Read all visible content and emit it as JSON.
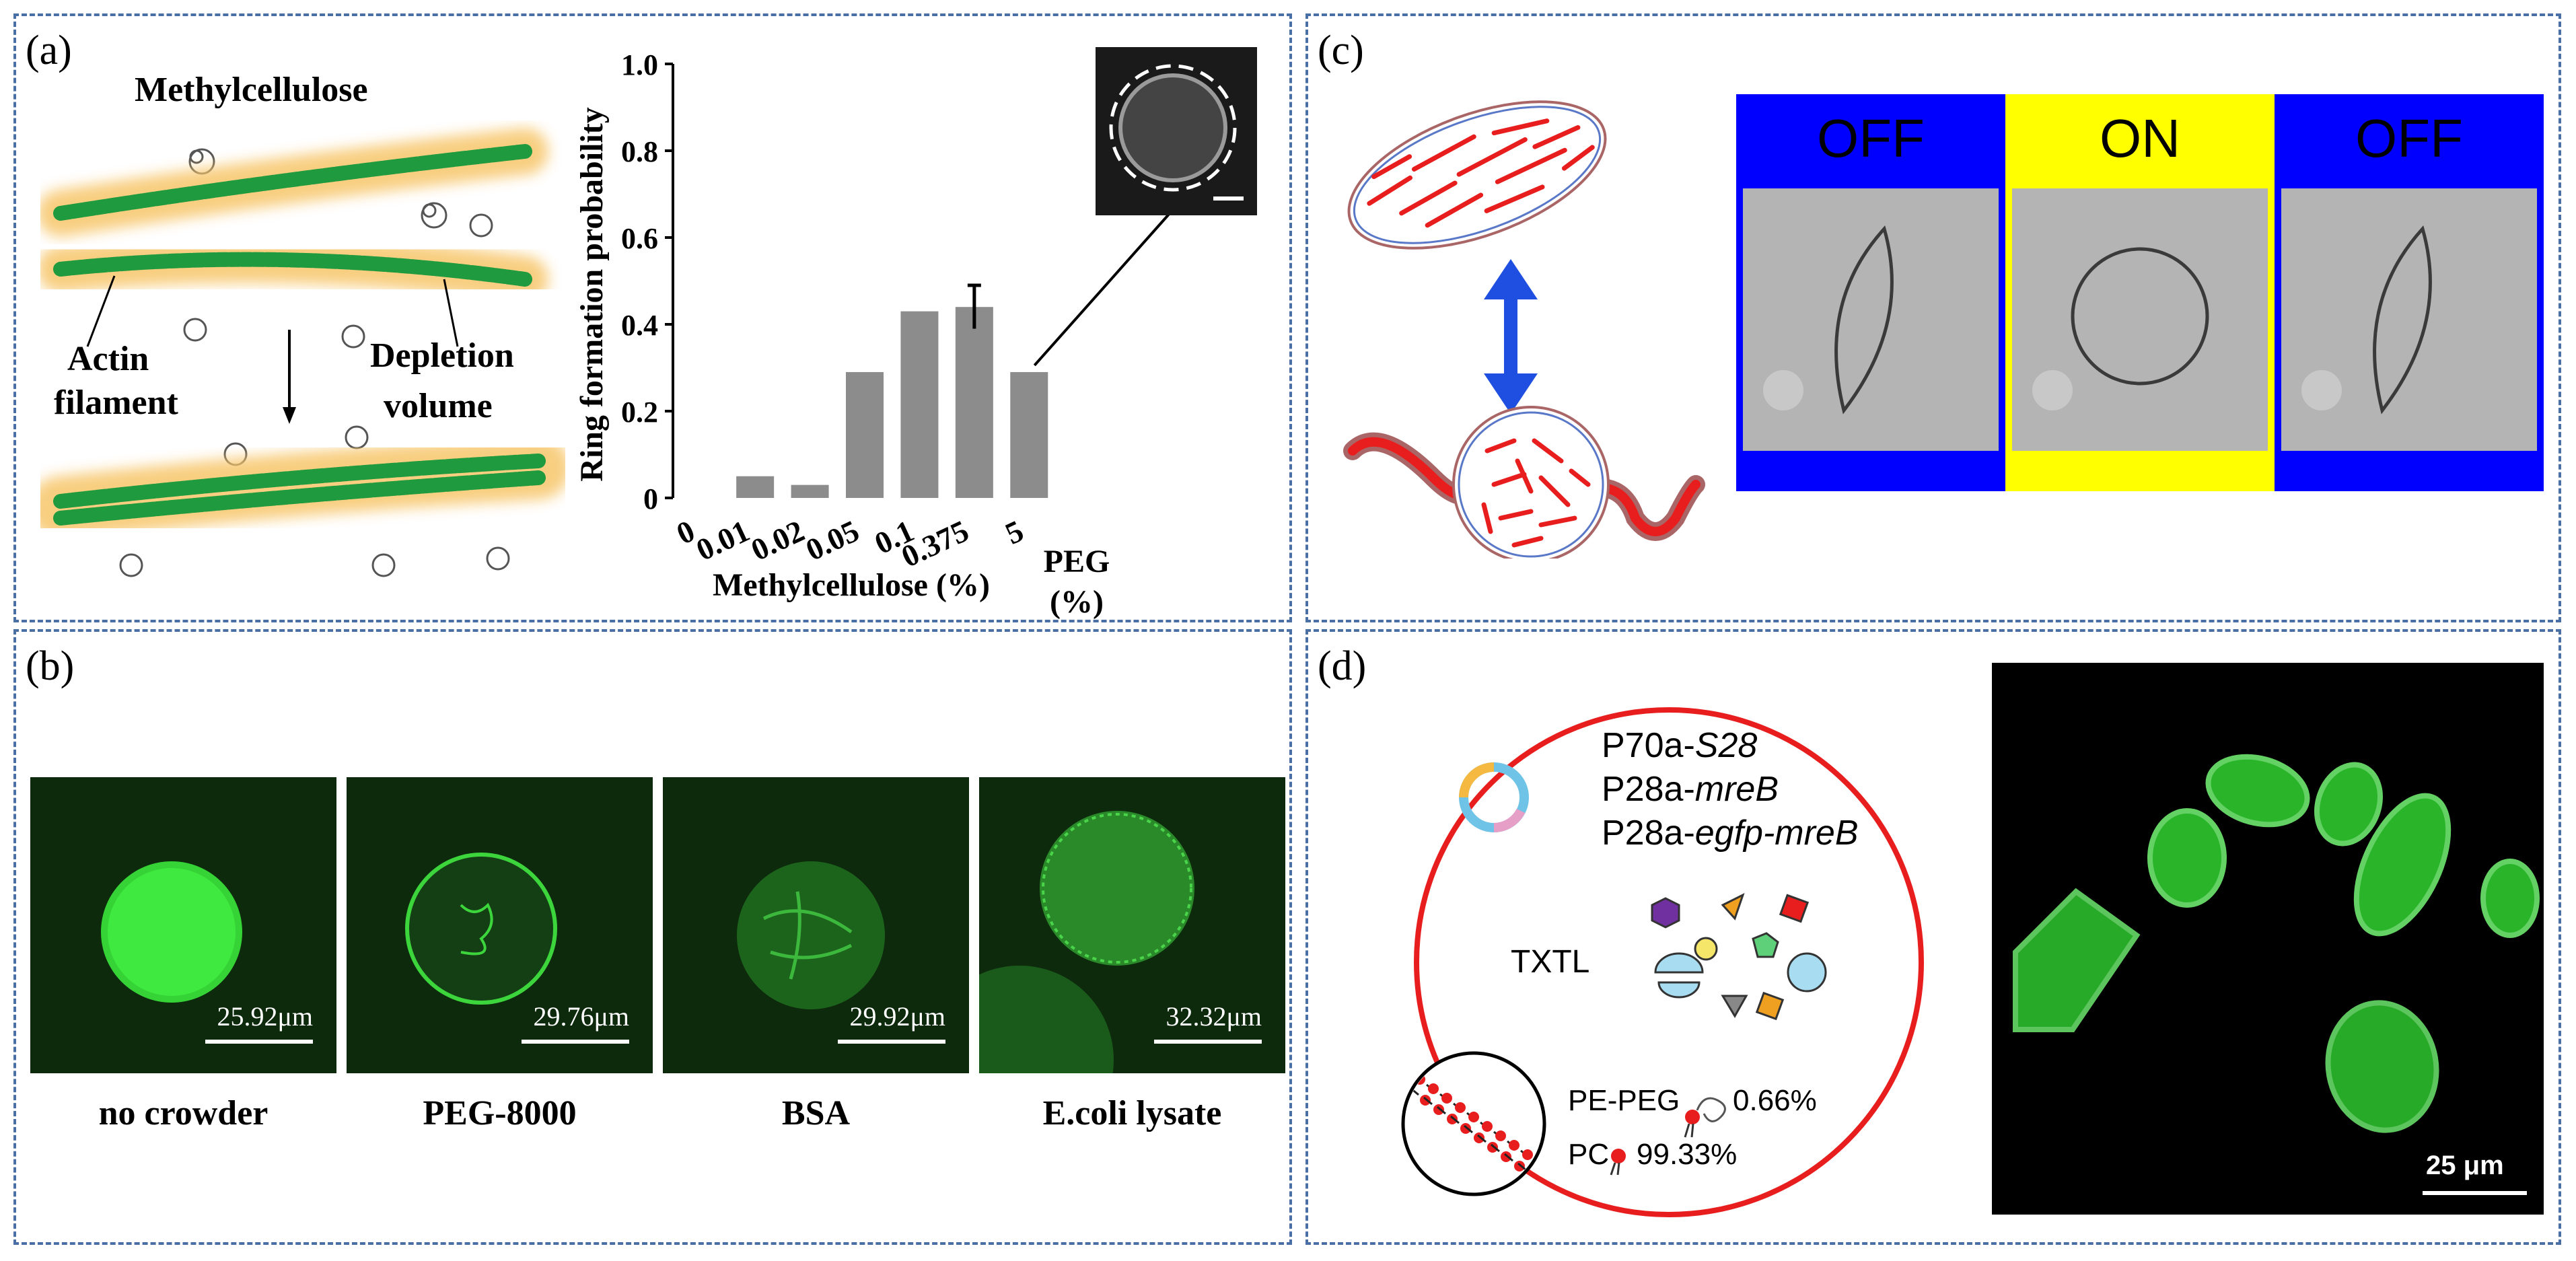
{
  "panels": {
    "a": {
      "label": "(a)",
      "methylcellulose": "Methylcellulose",
      "actin": "Actin",
      "filament": "filament",
      "depletion": "Depletion",
      "volume": "volume",
      "colors": {
        "filament": "#1f9a3e",
        "halo": "#f7c66b",
        "crowder": "#555555"
      }
    },
    "b": {
      "label": "(b)",
      "images": [
        {
          "caption": "no crowder",
          "scale": "25.92μm"
        },
        {
          "caption": "PEG-8000",
          "scale": "29.76μm"
        },
        {
          "caption": "BSA",
          "scale": "29.92μm"
        },
        {
          "caption": "E.coli lysate",
          "scale": "32.32μm"
        }
      ]
    },
    "c": {
      "label": "(c)",
      "states": [
        "OFF",
        "ON",
        "OFF"
      ],
      "colors": {
        "off": "#0000ff",
        "on": "#ffff00",
        "arrow": "#1f4fe0",
        "rod": "#e81e1e"
      }
    },
    "d": {
      "label": "(d)",
      "plasmid": [
        "P70a-",
        "P28a-",
        "P28a-"
      ],
      "plasmid_italic": [
        "S28",
        "mreB",
        "egfp-mreB"
      ],
      "txtl": "TXTL",
      "pe_peg": "PE-PEG",
      "pe_peg_pct": "0.66%",
      "pc": "PC",
      "pc_pct": "99.33%",
      "scale": "25 μm"
    }
  },
  "chart_data": {
    "type": "bar",
    "categories": [
      "0",
      "0.01",
      "0.02",
      "0.05",
      "0.1",
      "0.375",
      "5"
    ],
    "values": [
      0,
      0.05,
      0.03,
      0.29,
      0.43,
      0.44,
      0.29
    ],
    "error": [
      null,
      null,
      null,
      null,
      null,
      0.05,
      null
    ],
    "ylabel": "Ring formation probability",
    "xlabel": "Methylcellulose (%)",
    "extra_xlabel": [
      "PEG",
      "(%)"
    ],
    "yticks": [
      "0",
      "0.2",
      "0.4",
      "0.6",
      "0.8",
      "1.0"
    ],
    "ylim": [
      0,
      1.0
    ],
    "bar_color": "#8c8c8c"
  }
}
